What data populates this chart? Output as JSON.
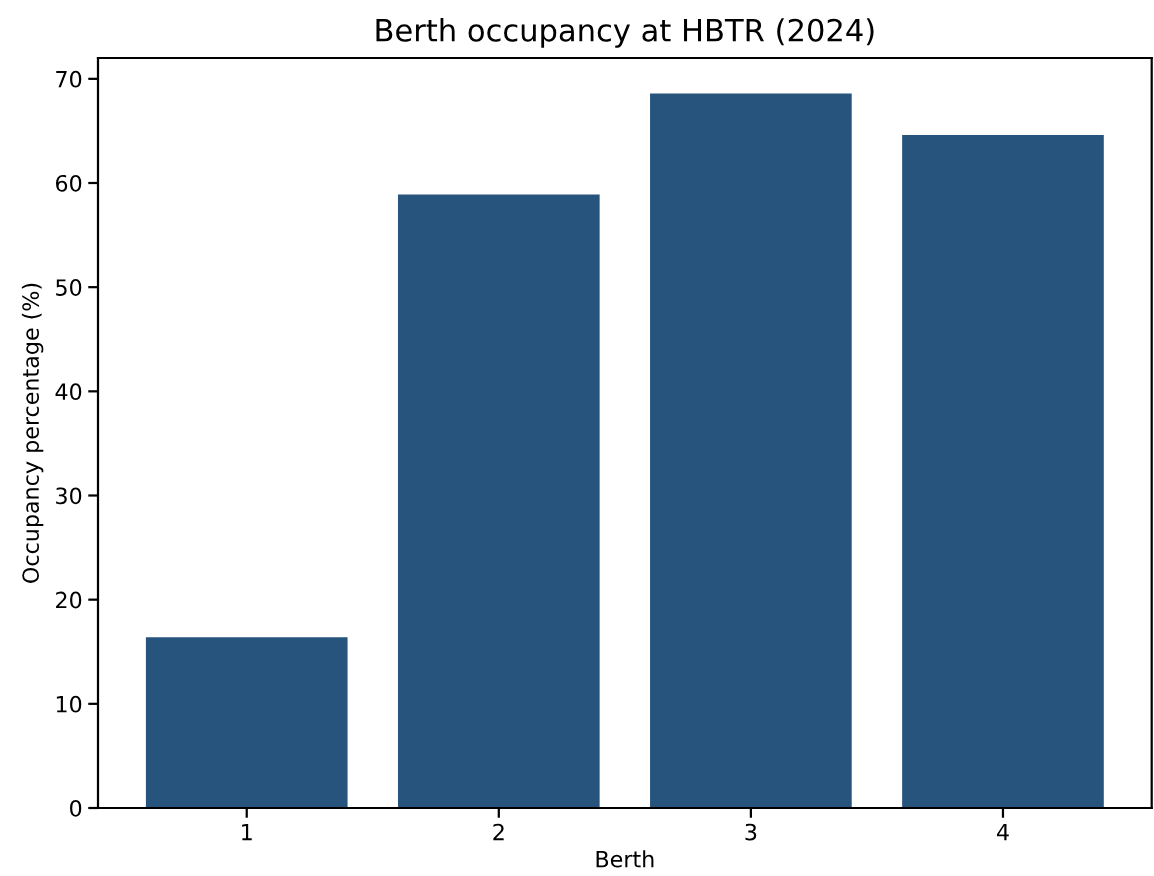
{
  "chart_data": {
    "type": "bar",
    "title": "Berth occupancy at HBTR (2024)",
    "xlabel": "Berth",
    "ylabel": "Occupancy percentage (%)",
    "categories": [
      "1",
      "2",
      "3",
      "4"
    ],
    "values": [
      16.4,
      58.9,
      68.6,
      64.6
    ],
    "color": "#27547c",
    "ylim": [
      0,
      72
    ],
    "yticks": [
      0,
      10,
      20,
      30,
      40,
      50,
      60,
      70
    ],
    "grid": false,
    "legend": false
  }
}
